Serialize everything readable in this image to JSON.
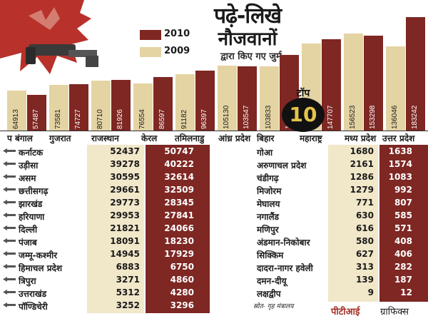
{
  "title": {
    "line1": "पढ़े-लिखे",
    "line2": "नौजवानों",
    "line3": "द्वारा किए गए जुर्म"
  },
  "legend": [
    {
      "label": "2010",
      "color": "#7e2723"
    },
    {
      "label": "2009",
      "color": "#e4d3a3"
    }
  ],
  "top10_badge": {
    "line1": "टॉप",
    "line2": "10"
  },
  "chart_data": {
    "type": "bar",
    "categories": [
      "प बंगाल",
      "गुजरात",
      "राजस्थान",
      "केरल",
      "तमिलनाडु",
      "आंध्र प्रदेश",
      "बिहार",
      "महाराष्ट्र",
      "मध्य प्रदेश",
      "उत्तर प्रदेश"
    ],
    "series": [
      {
        "name": "2009",
        "color": "#e4d3a3",
        "values": [
          64913,
          73581,
          80710,
          76554,
          91182,
          105130,
          103833,
          140093,
          156523,
          136046
        ]
      },
      {
        "name": "2010",
        "color": "#7e2723",
        "values": [
          57487,
          74727,
          81926,
          86597,
          96397,
          103547,
          122116,
          147707,
          153298,
          183242
        ]
      }
    ],
    "labels_2009": [
      "64913",
      "73581",
      "80710",
      "76554",
      "91182",
      "105130",
      "103833",
      "140093",
      "156523",
      "136046"
    ],
    "labels_2010": [
      "57487",
      "74727",
      "81926",
      "86597",
      "96397",
      "103547",
      "122116",
      "147707",
      "153298",
      "183242"
    ],
    "ylim": [
      0,
      190000
    ],
    "legend_position": "top"
  },
  "table_left": [
    {
      "state": "कर्नाटक",
      "y2009": "52437",
      "y2010": "50747"
    },
    {
      "state": "उड़ीसा",
      "y2009": "39278",
      "y2010": "40222"
    },
    {
      "state": "असम",
      "y2009": "30595",
      "y2010": "32614"
    },
    {
      "state": "छत्तीसगढ़",
      "y2009": "29661",
      "y2010": "32509"
    },
    {
      "state": "झारखंड",
      "y2009": "29773",
      "y2010": "28345"
    },
    {
      "state": "हरियाणा",
      "y2009": "29953",
      "y2010": "27841"
    },
    {
      "state": "दिल्ली",
      "y2009": "21821",
      "y2010": "24066"
    },
    {
      "state": "पंजाब",
      "y2009": "18091",
      "y2010": "18230"
    },
    {
      "state": "जम्मू-कश्मीर",
      "y2009": "14945",
      "y2010": "17929"
    },
    {
      "state": "हिमाचल प्रदेश",
      "y2009": "6883",
      "y2010": "6750"
    },
    {
      "state": "त्रिपुरा",
      "y2009": "3271",
      "y2010": "4860"
    },
    {
      "state": "उत्तराखंड",
      "y2009": "5312",
      "y2010": "4280"
    },
    {
      "state": "पॉण्डिचेरी",
      "y2009": "3252",
      "y2010": "3296"
    }
  ],
  "table_right": [
    {
      "state": "गोआ",
      "y2009": "1680",
      "y2010": "1638"
    },
    {
      "state": "अरुणाचल प्रदेश",
      "y2009": "2161",
      "y2010": "1574"
    },
    {
      "state": "चंडीगढ़",
      "y2009": "1286",
      "y2010": "1083"
    },
    {
      "state": "मिजोरम",
      "y2009": "1279",
      "y2010": "992"
    },
    {
      "state": "मेघालय",
      "y2009": "771",
      "y2010": "807"
    },
    {
      "state": "नगालैंड",
      "y2009": "630",
      "y2010": "585"
    },
    {
      "state": "मणिपुर",
      "y2009": "616",
      "y2010": "571"
    },
    {
      "state": "अंडमान-निकोबार",
      "y2009": "580",
      "y2010": "408"
    },
    {
      "state": "सिक्किम",
      "y2009": "627",
      "y2010": "406"
    },
    {
      "state": "दादरा-नागर हवेली",
      "y2009": "313",
      "y2010": "282"
    },
    {
      "state": "दमन-दीयू",
      "y2009": "139",
      "y2010": "187"
    },
    {
      "state": "लक्षद्वीप",
      "y2009": "9",
      "y2010": "12"
    }
  ],
  "source": "स्रोत- गृह मंत्रालय",
  "credit": {
    "agency": "पीटीआई",
    "suffix": " ग्राफिक्स"
  }
}
